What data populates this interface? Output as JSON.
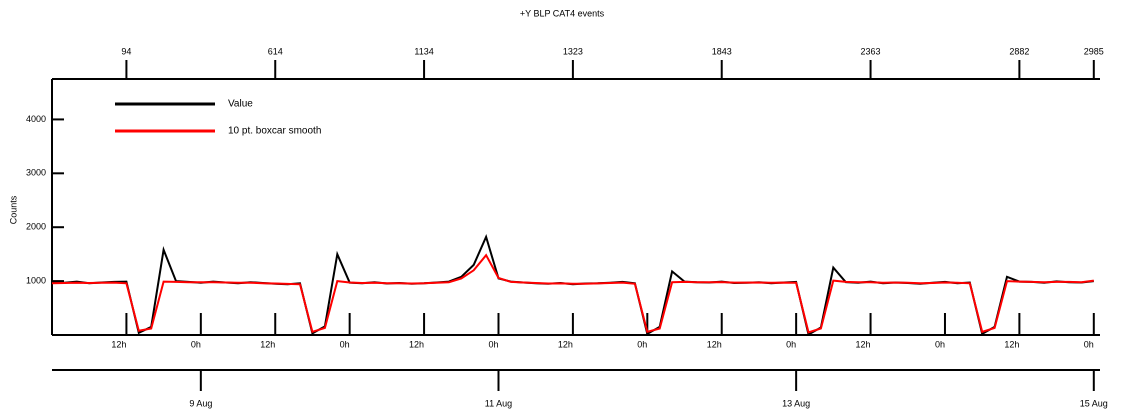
{
  "chart_data": {
    "type": "line",
    "title": "+Y BLP CAT4 events",
    "y_label": "Counts",
    "x": [
      "8 Aug 0h",
      "8 Aug 2h",
      "8 Aug 4h",
      "8 Aug 6h",
      "8 Aug 8h",
      "8 Aug 10h",
      "8 Aug 12h",
      "8 Aug 14h",
      "8 Aug 16h",
      "8 Aug 18h",
      "8 Aug 20h",
      "8 Aug 22h",
      "9 Aug 0h",
      "9 Aug 2h",
      "9 Aug 4h",
      "9 Aug 6h",
      "9 Aug 8h",
      "9 Aug 10h",
      "9 Aug 12h",
      "9 Aug 14h",
      "9 Aug 16h",
      "9 Aug 18h",
      "9 Aug 20h",
      "9 Aug 22h",
      "10 Aug 0h",
      "10 Aug 2h",
      "10 Aug 4h",
      "10 Aug 6h",
      "10 Aug 8h",
      "10 Aug 10h",
      "10 Aug 12h",
      "10 Aug 14h",
      "10 Aug 16h",
      "10 Aug 18h",
      "10 Aug 20h",
      "10 Aug 22h",
      "11 Aug 0h",
      "11 Aug 2h",
      "11 Aug 4h",
      "11 Aug 6h",
      "11 Aug 8h",
      "11 Aug 10h",
      "11 Aug 12h",
      "11 Aug 14h",
      "11 Aug 16h",
      "11 Aug 18h",
      "11 Aug 20h",
      "11 Aug 22h",
      "12 Aug 0h",
      "12 Aug 2h",
      "12 Aug 4h",
      "12 Aug 6h",
      "12 Aug 8h",
      "12 Aug 10h",
      "12 Aug 12h",
      "12 Aug 14h",
      "12 Aug 16h",
      "12 Aug 18h",
      "12 Aug 20h",
      "12 Aug 22h",
      "13 Aug 0h",
      "13 Aug 2h",
      "13 Aug 4h",
      "13 Aug 6h",
      "13 Aug 8h",
      "13 Aug 10h",
      "13 Aug 12h",
      "13 Aug 14h",
      "13 Aug 16h",
      "13 Aug 18h",
      "13 Aug 20h",
      "13 Aug 22h",
      "14 Aug 0h",
      "14 Aug 2h",
      "14 Aug 4h",
      "14 Aug 6h",
      "14 Aug 8h",
      "14 Aug 10h",
      "14 Aug 12h",
      "14 Aug 14h",
      "14 Aug 16h",
      "14 Aug 18h",
      "14 Aug 20h",
      "14 Aug 22h",
      "15 Aug 0h"
    ],
    "series": [
      {
        "name": "Value",
        "color": "#000000",
        "values": [
          980,
          970,
          990,
          960,
          975,
          985,
          990,
          40,
          150,
          1580,
          1000,
          985,
          970,
          990,
          975,
          960,
          980,
          965,
          950,
          940,
          960,
          30,
          160,
          1500,
          970,
          960,
          980,
          955,
          965,
          950,
          960,
          975,
          990,
          1080,
          1300,
          1820,
          1050,
          990,
          975,
          960,
          950,
          965,
          940,
          955,
          960,
          970,
          985,
          960,
          20,
          150,
          1180,
          990,
          980,
          975,
          990,
          965,
          970,
          980,
          960,
          975,
          985,
          10,
          140,
          1250,
          980,
          970,
          990,
          960,
          975,
          965,
          950,
          970,
          985,
          960,
          975,
          20,
          150,
          1080,
          990,
          985,
          970,
          995,
          980,
          975,
          1000
        ]
      },
      {
        "name": "10 pt. boxcar smooth",
        "color": "#ff0000",
        "values": [
          960,
          965,
          970,
          965,
          968,
          972,
          960,
          80,
          120,
          990,
          985,
          980,
          978,
          980,
          975,
          968,
          970,
          962,
          955,
          948,
          940,
          60,
          130,
          1000,
          975,
          965,
          968,
          962,
          960,
          955,
          960,
          968,
          980,
          1050,
          1200,
          1480,
          1060,
          985,
          975,
          965,
          955,
          958,
          950,
          952,
          958,
          965,
          972,
          950,
          60,
          120,
          980,
          985,
          980,
          978,
          982,
          972,
          972,
          975,
          968,
          972,
          970,
          50,
          120,
          1010,
          985,
          978,
          980,
          970,
          972,
          968,
          960,
          965,
          975,
          968,
          960,
          60,
          130,
          1000,
          990,
          985,
          978,
          985,
          985,
          980,
          1010
        ]
      }
    ],
    "xlim": [
      "8 Aug 0h",
      "15 Aug 1h"
    ],
    "ylim": [
      0,
      4750
    ],
    "yticks": [
      1000,
      2000,
      3000,
      4000
    ],
    "xticks": [
      {
        "value": "8 Aug 12h",
        "label": "12h"
      },
      {
        "value": "9 Aug 0h",
        "label": "0h"
      },
      {
        "value": "9 Aug 12h",
        "label": "12h"
      },
      {
        "value": "10 Aug 0h",
        "label": "0h"
      },
      {
        "value": "10 Aug 12h",
        "label": "12h"
      },
      {
        "value": "11 Aug 0h",
        "label": "0h"
      },
      {
        "value": "11 Aug 12h",
        "label": "12h"
      },
      {
        "value": "12 Aug 0h",
        "label": "0h"
      },
      {
        "value": "12 Aug 12h",
        "label": "12h"
      },
      {
        "value": "13 Aug 0h",
        "label": "0h"
      },
      {
        "value": "13 Aug 12h",
        "label": "12h"
      },
      {
        "value": "14 Aug 0h",
        "label": "0h"
      },
      {
        "value": "14 Aug 12h",
        "label": "12h"
      },
      {
        "value": "15 Aug 0h",
        "label": "0h"
      }
    ],
    "date_ticks": [
      {
        "value": "9 Aug 0h",
        "label": "9 Aug"
      },
      {
        "value": "11 Aug 0h",
        "label": "11 Aug"
      },
      {
        "value": "13 Aug 0h",
        "label": "13 Aug"
      },
      {
        "value": "15 Aug 0h",
        "label": "15 Aug"
      }
    ],
    "top_ticks": [
      {
        "value": "8 Aug 12h",
        "label": "94"
      },
      {
        "value": "9 Aug 12h",
        "label": "614"
      },
      {
        "value": "10 Aug 12h",
        "label": "1134"
      },
      {
        "value": "11 Aug 12h",
        "label": "1323"
      },
      {
        "value": "12 Aug 12h",
        "label": "1843"
      },
      {
        "value": "13 Aug 12h",
        "label": "2363"
      },
      {
        "value": "14 Aug 12h",
        "label": "2882"
      },
      {
        "value": "15 Aug 0h",
        "label": "2985"
      }
    ],
    "legend": "upper left"
  }
}
